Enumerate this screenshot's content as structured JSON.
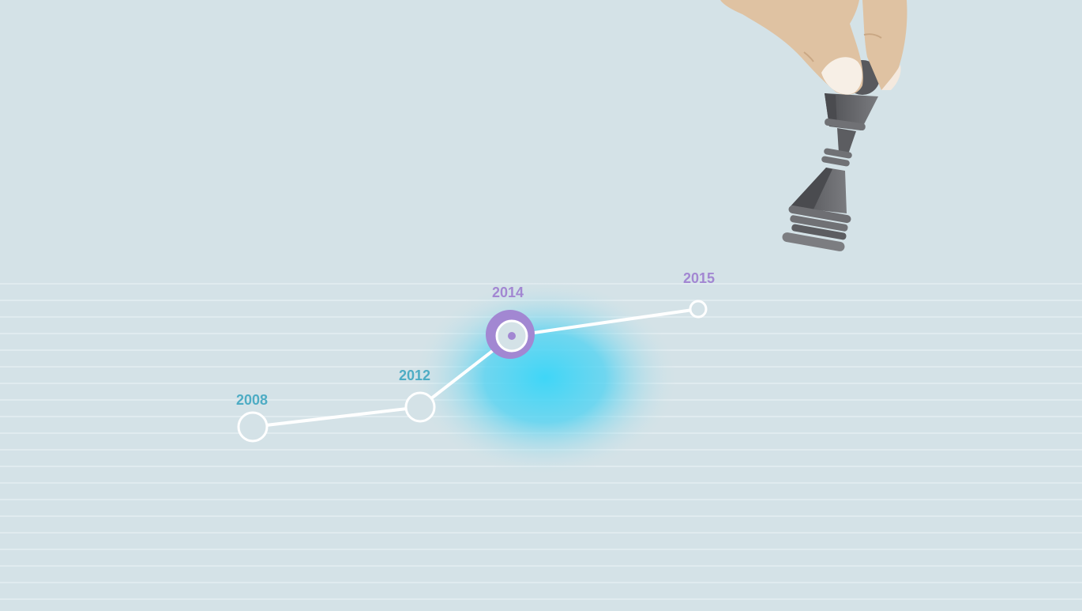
{
  "colors": {
    "background": "#d4e2e7",
    "stripe": "#e0ebef",
    "line": "#ffffff",
    "label_teal": "#4eacc4",
    "label_purple": "#a287d2",
    "highlight_ring": "#a287d2",
    "glow": "#3fd6f7",
    "chess_piece": "#5e5f63",
    "hand": "#dfc2a2"
  },
  "timeline": {
    "points": [
      {
        "year": "2008",
        "style": "teal",
        "state": "normal"
      },
      {
        "year": "2012",
        "style": "teal",
        "state": "normal"
      },
      {
        "year": "2014",
        "style": "purple",
        "state": "highlighted"
      },
      {
        "year": "2015",
        "style": "purple",
        "state": "small"
      }
    ]
  },
  "illustration": {
    "icon": "hand-holding-chess-king-icon"
  }
}
